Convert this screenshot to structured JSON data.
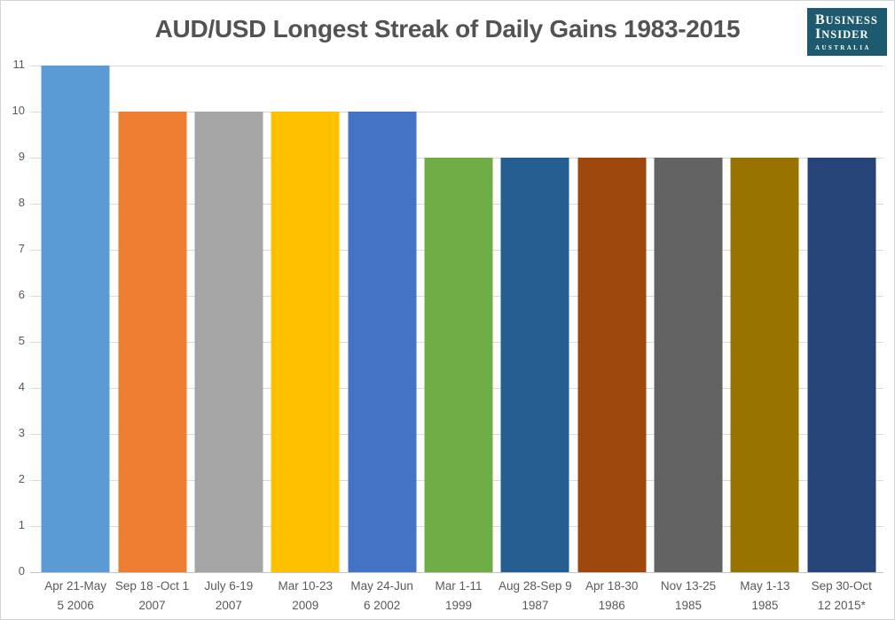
{
  "header": {
    "title": "AUD/USD Longest Streak of Daily Gains 1983-2015",
    "title_color": "#535353"
  },
  "logo": {
    "line1": "BUSINESS",
    "line2": "INSIDER",
    "line3": "AUSTRALIA",
    "bg_color": "#1e5a6f",
    "text_color": "#ffffff"
  },
  "chart_data": {
    "type": "bar",
    "title": "AUD/USD Longest Streak of Daily Gains 1983-2015",
    "categories": [
      "Apr 21-May 5 2006",
      "Sep 18 -Oct 1 2007",
      "July 6-19 2007",
      "Mar 10-23 2009",
      "May 24-Jun 6 2002",
      "Mar 1-11 1999",
      "Aug 28-Sep 9 1987",
      "Apr 18-30 1986",
      "Nov 13-25 1985",
      "May 1-13 1985",
      "Sep 30-Oct 12 2015*"
    ],
    "categories_lines": [
      [
        "Apr 21-May",
        "5 2006"
      ],
      [
        "Sep 18 -Oct 1",
        "2007"
      ],
      [
        "July 6-19",
        "2007"
      ],
      [
        "Mar 10-23",
        "2009"
      ],
      [
        "May 24-Jun",
        "6 2002"
      ],
      [
        "Mar 1-11",
        "1999"
      ],
      [
        "Aug 28-Sep 9",
        "1987"
      ],
      [
        "Apr 18-30",
        "1986"
      ],
      [
        "Nov 13-25",
        "1985"
      ],
      [
        "May 1-13",
        "1985"
      ],
      [
        "Sep 30-Oct",
        "12 2015*"
      ]
    ],
    "values": [
      11,
      10,
      10,
      10,
      10,
      9,
      9,
      9,
      9,
      9,
      9
    ],
    "bar_colors": [
      "#5B9BD5",
      "#ED7D31",
      "#A5A5A5",
      "#FFC000",
      "#4472C4",
      "#70AD47",
      "#255E91",
      "#9E480E",
      "#636363",
      "#997300",
      "#264478"
    ],
    "xlabel": "",
    "ylabel": "",
    "ylim": [
      0,
      11
    ],
    "yticks": [
      0,
      1,
      2,
      3,
      4,
      5,
      6,
      7,
      8,
      9,
      10,
      11
    ],
    "gridlines": true,
    "gridline_color": "#d9d9d9",
    "axis_line_color": "#c3c3c3",
    "axis_label_color": "#595959",
    "legend_position": "none"
  }
}
